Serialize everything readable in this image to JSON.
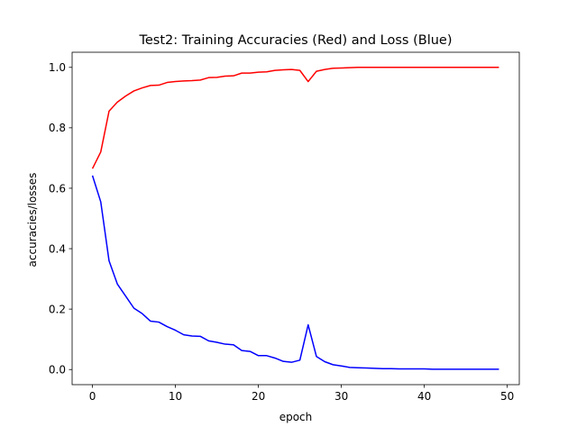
{
  "chart_data": {
    "type": "line",
    "title": "Test2: Training Accuracies (Red) and Loss (Blue)",
    "xlabel": "epoch",
    "ylabel": "accuracies/losses",
    "xlim": [
      -2.45,
      51.45
    ],
    "ylim": [
      -0.05,
      1.05
    ],
    "x_ticks": [
      0,
      10,
      20,
      30,
      40,
      50
    ],
    "y_ticks": [
      0.0,
      0.2,
      0.4,
      0.6,
      0.8,
      1.0
    ],
    "x_tick_labels": [
      "0",
      "10",
      "20",
      "30",
      "40",
      "50"
    ],
    "y_tick_labels": [
      "0.0",
      "0.2",
      "0.4",
      "0.6",
      "0.8",
      "1.0"
    ],
    "grid": false,
    "x": [
      0,
      1,
      2,
      3,
      4,
      5,
      6,
      7,
      8,
      9,
      10,
      11,
      12,
      13,
      14,
      15,
      16,
      17,
      18,
      19,
      20,
      21,
      22,
      23,
      24,
      25,
      26,
      27,
      28,
      29,
      30,
      31,
      32,
      33,
      34,
      35,
      36,
      37,
      38,
      39,
      40,
      41,
      42,
      43,
      44,
      45,
      46,
      47,
      48,
      49
    ],
    "series": [
      {
        "color": "#ff0000",
        "values": [
          0.665,
          0.72,
          0.855,
          0.885,
          0.905,
          0.922,
          0.932,
          0.94,
          0.941,
          0.95,
          0.953,
          0.955,
          0.956,
          0.958,
          0.966,
          0.967,
          0.971,
          0.972,
          0.981,
          0.981,
          0.984,
          0.985,
          0.99,
          0.992,
          0.993,
          0.99,
          0.953,
          0.987,
          0.993,
          0.997,
          0.998,
          0.999,
          1.0,
          1.0,
          1.0,
          1.0,
          1.0,
          1.0,
          1.0,
          1.0,
          1.0,
          1.0,
          1.0,
          1.0,
          1.0,
          1.0,
          1.0,
          1.0,
          1.0,
          1.0
        ]
      },
      {
        "color": "#0000ff",
        "values": [
          0.642,
          0.555,
          0.36,
          0.283,
          0.243,
          0.203,
          0.185,
          0.16,
          0.157,
          0.142,
          0.13,
          0.115,
          0.111,
          0.11,
          0.095,
          0.09,
          0.084,
          0.082,
          0.063,
          0.06,
          0.046,
          0.046,
          0.038,
          0.027,
          0.024,
          0.031,
          0.148,
          0.043,
          0.026,
          0.016,
          0.012,
          0.007,
          0.006,
          0.005,
          0.004,
          0.003,
          0.003,
          0.002,
          0.002,
          0.002,
          0.002,
          0.001,
          0.001,
          0.001,
          0.001,
          0.001,
          0.001,
          0.001,
          0.001,
          0.001
        ]
      }
    ]
  }
}
